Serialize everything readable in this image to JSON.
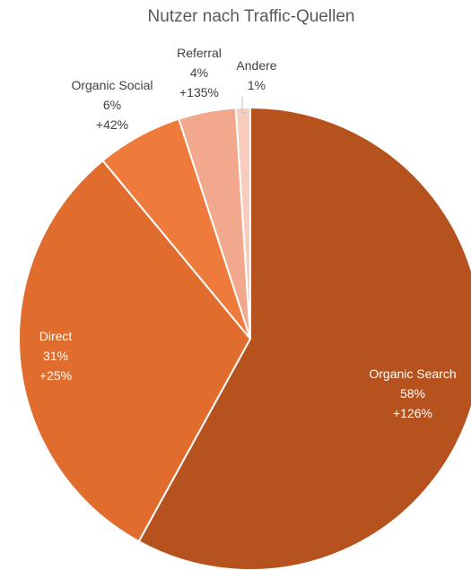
{
  "chart_data": {
    "type": "pie",
    "title": "Nutzer nach Traffic-Quellen",
    "slices": [
      {
        "label": "Organic Search",
        "value": 58,
        "pct_text": "58%",
        "change": "+126%",
        "color": "#B5521E",
        "text_color": "#FFFFFF"
      },
      {
        "label": "Direct",
        "value": 31,
        "pct_text": "31%",
        "change": "+25%",
        "color": "#E06D2E",
        "text_color": "#FFFFFF"
      },
      {
        "label": "Organic Social",
        "value": 6,
        "pct_text": "6%",
        "change": "+42%",
        "color": "#EE7A3C",
        "text_color": "#404040"
      },
      {
        "label": "Referral",
        "value": 4,
        "pct_text": "4%",
        "change": "+135%",
        "color": "#F2A88D",
        "text_color": "#404040"
      },
      {
        "label": "Andere",
        "value": 1,
        "pct_text": "1%",
        "change": "",
        "color": "#F8CDBE",
        "text_color": "#404040"
      }
    ]
  }
}
